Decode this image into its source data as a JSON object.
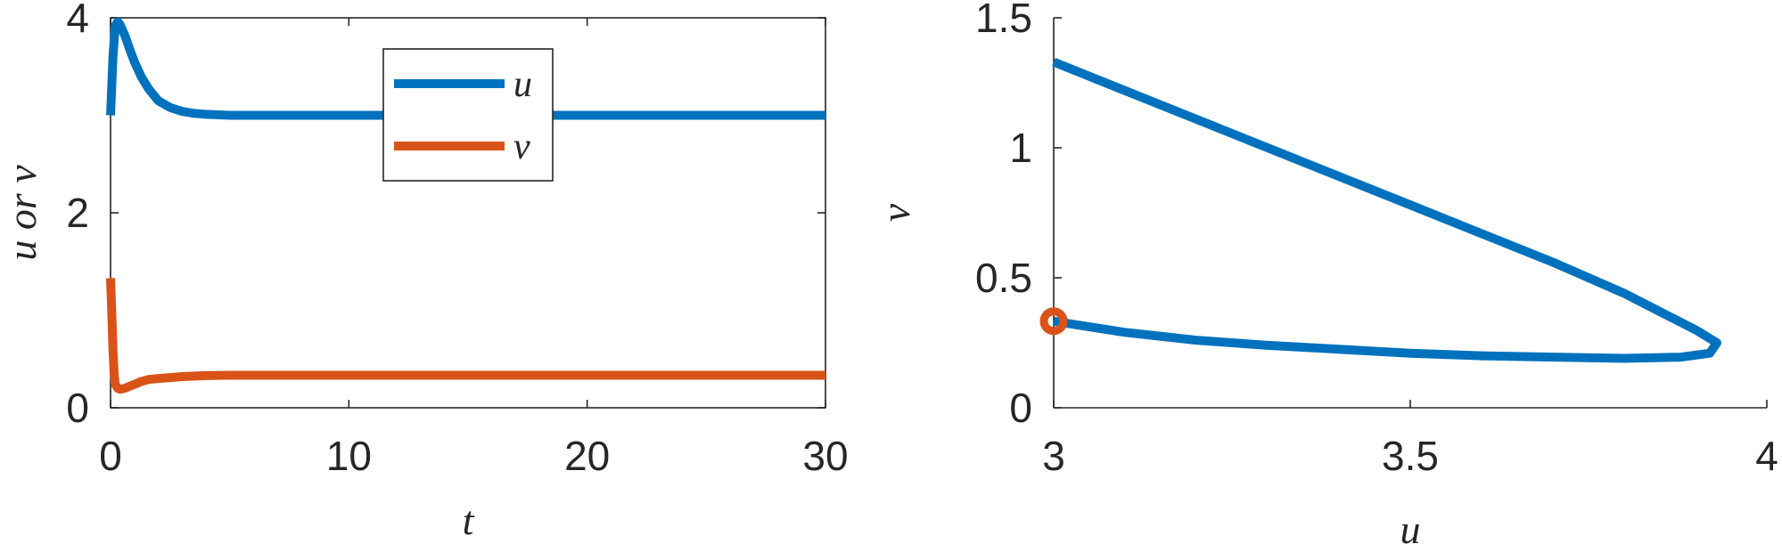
{
  "chart_data": [
    {
      "type": "line",
      "xlabel": "t",
      "ylabel": "u or v",
      "xlim": [
        0,
        30
      ],
      "ylim": [
        0,
        4
      ],
      "xticks": [
        "0",
        "10",
        "20",
        "30"
      ],
      "yticks": [
        "0",
        "2",
        "4"
      ],
      "legend": {
        "placement": "top-center",
        "entries": [
          "u",
          "v"
        ]
      },
      "series": [
        {
          "name": "u",
          "color": "#0072BD",
          "x": [
            0,
            0.1,
            0.2,
            0.3,
            0.4,
            0.6,
            0.8,
            1.0,
            1.3,
            1.6,
            2.0,
            2.5,
            3.0,
            3.5,
            4.0,
            5.0,
            6.0,
            8.0,
            10,
            15,
            20,
            25,
            30
          ],
          "y": [
            3.0,
            3.6,
            3.92,
            3.96,
            3.93,
            3.82,
            3.68,
            3.55,
            3.39,
            3.27,
            3.15,
            3.08,
            3.04,
            3.02,
            3.01,
            3.0,
            3.0,
            3.0,
            3.0,
            3.0,
            3.0,
            3.0,
            3.0
          ]
        },
        {
          "name": "v",
          "color": "#D95319",
          "x": [
            0,
            0.05,
            0.1,
            0.15,
            0.2,
            0.3,
            0.4,
            0.6,
            0.8,
            1.0,
            1.3,
            1.6,
            2.0,
            2.5,
            3.0,
            4.0,
            5.0,
            6.0,
            8.0,
            10,
            15,
            20,
            25,
            30
          ],
          "y": [
            1.33,
            1.0,
            0.6,
            0.35,
            0.24,
            0.2,
            0.19,
            0.2,
            0.22,
            0.24,
            0.27,
            0.29,
            0.3,
            0.31,
            0.32,
            0.33,
            0.333,
            0.333,
            0.333,
            0.333,
            0.333,
            0.333,
            0.333,
            0.333
          ]
        }
      ]
    },
    {
      "type": "line",
      "xlabel": "u",
      "ylabel": "v",
      "xlim": [
        3,
        4
      ],
      "ylim": [
        0,
        1.5
      ],
      "xticks": [
        "3",
        "3.5",
        "4"
      ],
      "yticks": [
        "0",
        "0.5",
        "1",
        "1.5"
      ],
      "series": [
        {
          "color": "#0072BD",
          "x": [
            3.0,
            3.1,
            3.2,
            3.3,
            3.4,
            3.5,
            3.6,
            3.7,
            3.8,
            3.85,
            3.9,
            3.93,
            3.92,
            3.88,
            3.8,
            3.7,
            3.6,
            3.5,
            3.4,
            3.3,
            3.2,
            3.1,
            3.0
          ],
          "y": [
            1.33,
            1.22,
            1.11,
            1.0,
            0.89,
            0.78,
            0.67,
            0.56,
            0.44,
            0.37,
            0.3,
            0.25,
            0.21,
            0.195,
            0.19,
            0.195,
            0.2,
            0.21,
            0.225,
            0.24,
            0.26,
            0.29,
            0.333
          ]
        }
      ],
      "marker": {
        "x": 3.0,
        "y": 0.333,
        "shape": "circle",
        "color": "#D95319"
      }
    }
  ]
}
